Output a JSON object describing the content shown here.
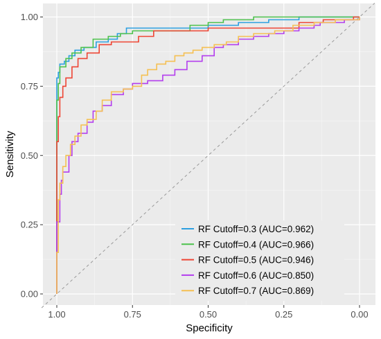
{
  "chart_data": {
    "type": "line",
    "title": "",
    "xlabel": "Specificity",
    "ylabel": "Sensitivity",
    "x_reversed": true,
    "xlim": [
      1.0,
      0.0
    ],
    "ylim": [
      0.0,
      1.0
    ],
    "x_ticks": [
      "1.00",
      "0.75",
      "0.50",
      "0.25",
      "0.00"
    ],
    "y_ticks": [
      "0.00",
      "0.25",
      "0.50",
      "0.75",
      "1.00"
    ],
    "grid": true,
    "background": "#ebebeb",
    "reference_line": {
      "from": [
        1.0,
        0.0
      ],
      "to": [
        0.0,
        1.0
      ],
      "style": "dashed",
      "color": "#999999"
    },
    "legend_position": "bottom-right",
    "series": [
      {
        "name": "RF Cutoff=0.3 (AUC=0.962)",
        "color": "#2b9fe0",
        "points": [
          [
            1.0,
            0.0
          ],
          [
            1.0,
            0.78
          ],
          [
            0.995,
            0.8
          ],
          [
            0.99,
            0.83
          ],
          [
            0.975,
            0.84
          ],
          [
            0.96,
            0.86
          ],
          [
            0.94,
            0.88
          ],
          [
            0.91,
            0.89
          ],
          [
            0.87,
            0.91
          ],
          [
            0.83,
            0.92
          ],
          [
            0.8,
            0.94
          ],
          [
            0.77,
            0.96
          ],
          [
            0.7,
            0.96
          ],
          [
            0.6,
            0.96
          ],
          [
            0.5,
            0.97
          ],
          [
            0.4,
            0.98
          ],
          [
            0.3,
            0.99
          ],
          [
            0.2,
            1.0
          ],
          [
            0.0,
            1.0
          ]
        ]
      },
      {
        "name": "RF Cutoff=0.4 (AUC=0.966)",
        "color": "#4cc24c",
        "points": [
          [
            1.0,
            0.0
          ],
          [
            1.0,
            0.7
          ],
          [
            0.995,
            0.76
          ],
          [
            0.99,
            0.82
          ],
          [
            0.97,
            0.85
          ],
          [
            0.95,
            0.87
          ],
          [
            0.92,
            0.89
          ],
          [
            0.88,
            0.92
          ],
          [
            0.83,
            0.93
          ],
          [
            0.79,
            0.94
          ],
          [
            0.75,
            0.95
          ],
          [
            0.62,
            0.95
          ],
          [
            0.56,
            0.97
          ],
          [
            0.5,
            0.98
          ],
          [
            0.45,
            0.99
          ],
          [
            0.35,
            1.0
          ],
          [
            0.0,
            1.0
          ]
        ]
      },
      {
        "name": "RF Cutoff=0.5 (AUC=0.946)",
        "color": "#ee4433",
        "points": [
          [
            1.0,
            0.0
          ],
          [
            1.0,
            0.55
          ],
          [
            0.995,
            0.64
          ],
          [
            0.99,
            0.71
          ],
          [
            0.98,
            0.75
          ],
          [
            0.97,
            0.78
          ],
          [
            0.95,
            0.82
          ],
          [
            0.93,
            0.85
          ],
          [
            0.9,
            0.87
          ],
          [
            0.86,
            0.9
          ],
          [
            0.82,
            0.91
          ],
          [
            0.78,
            0.91
          ],
          [
            0.73,
            0.93
          ],
          [
            0.68,
            0.95
          ],
          [
            0.6,
            0.95
          ],
          [
            0.5,
            0.96
          ],
          [
            0.4,
            0.96
          ],
          [
            0.3,
            0.96
          ],
          [
            0.2,
            0.98
          ],
          [
            0.12,
            0.99
          ],
          [
            0.05,
            0.99
          ],
          [
            0.02,
            1.0
          ],
          [
            0.0,
            1.0
          ]
        ]
      },
      {
        "name": "RF Cutoff=0.6 (AUC=0.850)",
        "color": "#b33dee",
        "points": [
          [
            1.0,
            0.0
          ],
          [
            1.0,
            0.26
          ],
          [
            0.99,
            0.36
          ],
          [
            0.985,
            0.41
          ],
          [
            0.98,
            0.44
          ],
          [
            0.96,
            0.5
          ],
          [
            0.95,
            0.55
          ],
          [
            0.93,
            0.58
          ],
          [
            0.9,
            0.62
          ],
          [
            0.88,
            0.66
          ],
          [
            0.85,
            0.68
          ],
          [
            0.82,
            0.72
          ],
          [
            0.78,
            0.74
          ],
          [
            0.75,
            0.76
          ],
          [
            0.7,
            0.77
          ],
          [
            0.65,
            0.79
          ],
          [
            0.61,
            0.81
          ],
          [
            0.57,
            0.84
          ],
          [
            0.52,
            0.86
          ],
          [
            0.48,
            0.89
          ],
          [
            0.45,
            0.9
          ],
          [
            0.4,
            0.92
          ],
          [
            0.35,
            0.93
          ],
          [
            0.3,
            0.94
          ],
          [
            0.25,
            0.95
          ],
          [
            0.2,
            0.96
          ],
          [
            0.15,
            0.97
          ],
          [
            0.13,
            0.98
          ],
          [
            0.05,
            0.99
          ],
          [
            0.01,
            0.99
          ],
          [
            0.0,
            1.0
          ]
        ]
      },
      {
        "name": "RF Cutoff=0.7 (AUC=0.869)",
        "color": "#f5c052",
        "points": [
          [
            1.0,
            0.0
          ],
          [
            1.0,
            0.15
          ],
          [
            0.995,
            0.34
          ],
          [
            0.99,
            0.4
          ],
          [
            0.98,
            0.46
          ],
          [
            0.97,
            0.5
          ],
          [
            0.955,
            0.54
          ],
          [
            0.94,
            0.57
          ],
          [
            0.92,
            0.61
          ],
          [
            0.9,
            0.63
          ],
          [
            0.87,
            0.66
          ],
          [
            0.85,
            0.7
          ],
          [
            0.82,
            0.73
          ],
          [
            0.78,
            0.74
          ],
          [
            0.75,
            0.75
          ],
          [
            0.72,
            0.79
          ],
          [
            0.7,
            0.81
          ],
          [
            0.67,
            0.83
          ],
          [
            0.64,
            0.84
          ],
          [
            0.61,
            0.86
          ],
          [
            0.58,
            0.87
          ],
          [
            0.55,
            0.88
          ],
          [
            0.52,
            0.89
          ],
          [
            0.48,
            0.9
          ],
          [
            0.44,
            0.91
          ],
          [
            0.4,
            0.93
          ],
          [
            0.35,
            0.94
          ],
          [
            0.28,
            0.95
          ],
          [
            0.22,
            0.97
          ],
          [
            0.15,
            0.98
          ],
          [
            0.08,
            0.99
          ],
          [
            0.02,
            0.99
          ],
          [
            0.0,
            1.0
          ]
        ]
      }
    ]
  }
}
